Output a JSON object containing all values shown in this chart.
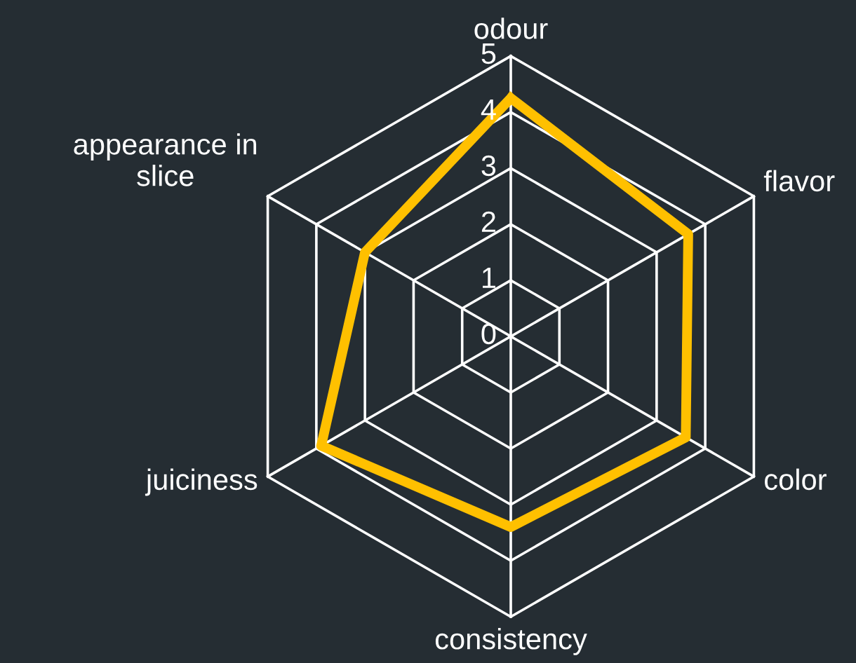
{
  "chart_data": {
    "type": "radar",
    "categories": [
      "odour",
      "flavor",
      "color",
      "consistency",
      "juiciness",
      "appearance in\nslice"
    ],
    "series": [
      {
        "color": "#ffc000",
        "values": [
          4.25,
          3.65,
          3.6,
          3.4,
          3.9,
          3.0
        ]
      }
    ],
    "ylim": [
      0,
      5
    ],
    "yticks": [
      0,
      1,
      2,
      3,
      4,
      5
    ],
    "grid": true
  }
}
